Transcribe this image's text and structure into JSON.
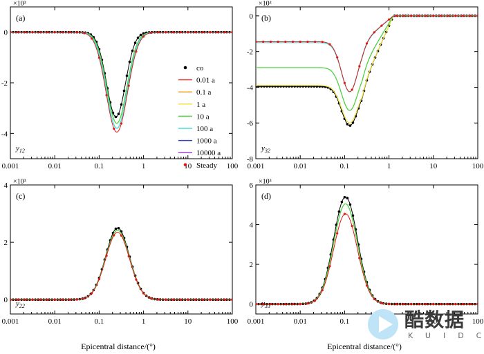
{
  "x_ticks": [
    "0.001",
    "0.01",
    "0.1",
    "1",
    "10",
    "100"
  ],
  "xlabel": "Epicentral distance/(°)",
  "legend": [
    {
      "label": "co",
      "color": "#000000",
      "kind": "dot"
    },
    {
      "label": "0.01 a",
      "color": "#e8413c",
      "kind": "line"
    },
    {
      "label": "0.1 a",
      "color": "#f0a030",
      "kind": "line"
    },
    {
      "label": "1 a",
      "color": "#f0e040",
      "kind": "line"
    },
    {
      "label": "10 a",
      "color": "#50d040",
      "kind": "line"
    },
    {
      "label": "100 a",
      "color": "#40e0e0",
      "kind": "line"
    },
    {
      "label": "1000 a",
      "color": "#3040c0",
      "kind": "line"
    },
    {
      "label": "10000 a",
      "color": "#a040d0",
      "kind": "line"
    },
    {
      "label": "Steady",
      "color": "#e01818",
      "kind": "dot"
    }
  ],
  "chart_data": [
    {
      "type": "line",
      "panel": "(a)",
      "var": "y12",
      "mult": "×10³",
      "ylim": [
        -5000,
        1000
      ],
      "yticks": [
        "0",
        "-2",
        "-4"
      ],
      "ytick_values": [
        0,
        -2000,
        -4000
      ],
      "xlim": [
        0.001,
        100
      ],
      "xscale": "log",
      "curves": [
        {
          "series": "co",
          "amp": -3350,
          "c": 0.24,
          "w": 0.3,
          "base": 0
        },
        {
          "series": "10 a",
          "amp": -3600,
          "c": 0.25,
          "w": 0.32,
          "base": 0
        },
        {
          "series": "100 a",
          "amp": -3800,
          "c": 0.25,
          "w": 0.33,
          "base": 0
        },
        {
          "series": "Steady",
          "amp": -3950,
          "c": 0.25,
          "w": 0.34,
          "base": 0
        }
      ]
    },
    {
      "type": "line",
      "panel": "(b)",
      "var": "y32",
      "mult": "×10³",
      "ylim": [
        -8000,
        500
      ],
      "yticks": [
        "0",
        "-2",
        "-4",
        "-6",
        "-8"
      ],
      "ytick_values": [
        0,
        -2000,
        -4000,
        -6000,
        -8000
      ],
      "xlim": [
        0.001,
        100
      ],
      "xscale": "log",
      "curves": [
        {
          "series": "co",
          "amp": -2200,
          "c": 0.13,
          "w": 0.26,
          "base": -3950
        },
        {
          "series": "1 a",
          "amp": -2100,
          "c": 0.13,
          "w": 0.26,
          "base": -3900
        },
        {
          "series": "10 a",
          "amp": -2400,
          "c": 0.13,
          "w": 0.26,
          "base": -2900
        },
        {
          "series": "100 a",
          "amp": -2750,
          "c": 0.13,
          "w": 0.26,
          "base": -1500
        },
        {
          "series": "Steady",
          "amp": -2800,
          "c": 0.13,
          "w": 0.26,
          "base": -1450
        }
      ]
    },
    {
      "type": "line",
      "panel": "(c)",
      "var": "y22",
      "mult": "×10³",
      "ylim": [
        -500,
        4000
      ],
      "yticks": [
        "4",
        "2",
        "0"
      ],
      "ytick_values": [
        4000,
        2000,
        0
      ],
      "xlim": [
        0.001,
        100
      ],
      "xscale": "log",
      "curves": [
        {
          "series": "co",
          "amp": 2500,
          "c": 0.26,
          "w": 0.38,
          "base": 0
        },
        {
          "series": "10 a",
          "amp": 2420,
          "c": 0.26,
          "w": 0.38,
          "base": 0
        },
        {
          "series": "Steady",
          "amp": 2350,
          "c": 0.26,
          "w": 0.38,
          "base": 0
        }
      ]
    },
    {
      "type": "line",
      "panel": "(d)",
      "var": "y33",
      "mult": "×10³",
      "ylim": [
        -500,
        6000
      ],
      "yticks": [
        "6",
        "4",
        "2",
        "0"
      ],
      "ytick_values": [
        6000,
        4000,
        2000,
        0
      ],
      "xlim": [
        0.001,
        100
      ],
      "xscale": "log",
      "curves": [
        {
          "series": "co",
          "amp": 5400,
          "c": 0.105,
          "w": 0.38,
          "base": 0
        },
        {
          "series": "10 a",
          "amp": 5050,
          "c": 0.105,
          "w": 0.38,
          "base": 0
        },
        {
          "series": "Steady",
          "amp": 4550,
          "c": 0.105,
          "w": 0.38,
          "base": 0
        }
      ]
    }
  ],
  "watermark": {
    "text": "酷数据",
    "sub": "KUIDC"
  }
}
